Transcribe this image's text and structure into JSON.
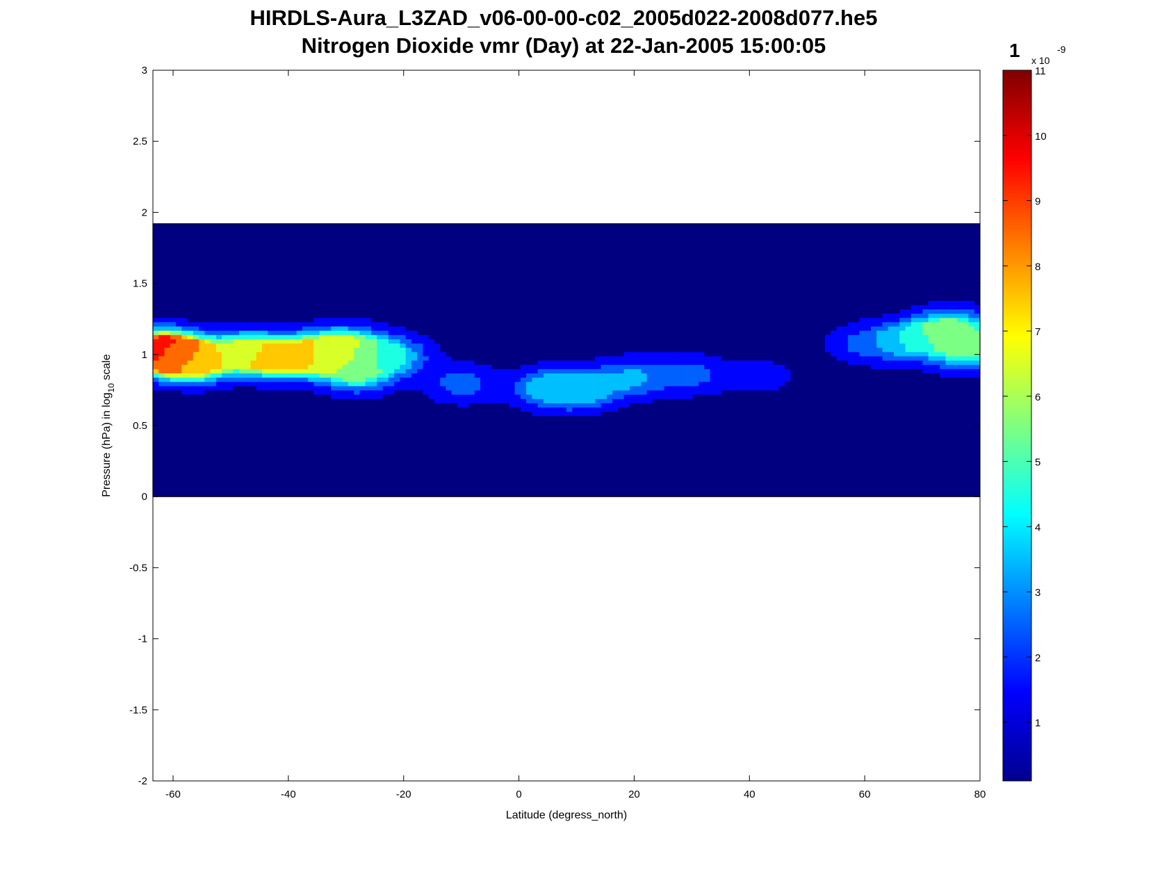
{
  "chart_data": {
    "type": "contour",
    "title": "HIRDLS-Aura_L3ZAD_v06-00-00-c02_2005d022-2008d077.he5",
    "subtitle": "Nitrogen Dioxide vmr (Day) at 22-Jan-2005 15:00:05",
    "xlabel": "Latitude (degress_north)",
    "ylabel_main": "Pressure (hPa) in log",
    "ylabel_sub": "10",
    "ylabel_tail": " scale",
    "xlim": [
      -63.5,
      80
    ],
    "ylim": [
      -2,
      3
    ],
    "data_extent": {
      "x": [
        -63.5,
        80
      ],
      "y": [
        0,
        1.92
      ]
    },
    "x_ticks": [
      -60,
      -40,
      -20,
      0,
      20,
      40,
      60,
      80
    ],
    "y_ticks": [
      -2,
      -1.5,
      -1,
      -0.5,
      0,
      0.5,
      1,
      1.5,
      2,
      2.5,
      3
    ],
    "grid": false,
    "colorbar": {
      "label": "1",
      "exponent_prefix": "x 10",
      "exponent": "-9",
      "range": [
        0.1,
        11
      ],
      "ticks": [
        1,
        2,
        3,
        4,
        5,
        6,
        7,
        8,
        9,
        10,
        11
      ],
      "colormap": "jet",
      "contour_levels": [
        1,
        2,
        3,
        4,
        5,
        6,
        7,
        8,
        9,
        10
      ]
    },
    "features": [
      {
        "lat": -63,
        "logp": 1.03,
        "value": 10.2
      },
      {
        "lat": -60,
        "logp": 1.0,
        "value": 8.5
      },
      {
        "lat": -56,
        "logp": 0.95,
        "value": 7.1
      },
      {
        "lat": -48,
        "logp": 1.02,
        "value": 6.3
      },
      {
        "lat": -35,
        "logp": 1.0,
        "value": 7.1
      },
      {
        "lat": -42,
        "logp": 0.98,
        "value": 7.8
      },
      {
        "lat": -30,
        "logp": 1.05,
        "value": 6.5
      },
      {
        "lat": -28,
        "logp": 0.88,
        "value": 5.5
      },
      {
        "lat": -22,
        "logp": 1.0,
        "value": 4.0
      },
      {
        "lat": -10,
        "logp": 0.8,
        "value": 2.6
      },
      {
        "lat": 5,
        "logp": 0.76,
        "value": 3.6
      },
      {
        "lat": 11,
        "logp": 0.76,
        "value": 4.1
      },
      {
        "lat": 20,
        "logp": 0.84,
        "value": 3.1
      },
      {
        "lat": 30,
        "logp": 0.86,
        "value": 2.4
      },
      {
        "lat": 42,
        "logp": 0.85,
        "value": 1.5
      },
      {
        "lat": 60,
        "logp": 1.08,
        "value": 2.3
      },
      {
        "lat": 68,
        "logp": 1.1,
        "value": 4.4
      },
      {
        "lat": 75,
        "logp": 1.18,
        "value": 6.0
      },
      {
        "lat": 78,
        "logp": 1.03,
        "value": 5.3
      }
    ]
  }
}
